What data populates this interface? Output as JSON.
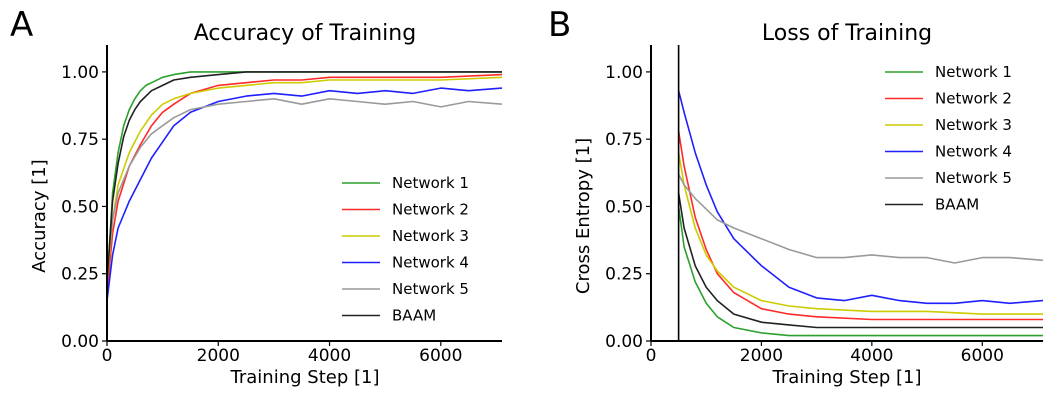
{
  "colors": {
    "network1": "#2ca02c",
    "network2": "#ff2a2a",
    "network3": "#cccc00",
    "network4": "#1f1fff",
    "network5": "#9a9a9a",
    "baam": "#222222"
  },
  "chart_data": [
    {
      "panel": "A",
      "type": "line",
      "title": "Accuracy of Training",
      "xlabel": "Training Step [1]",
      "ylabel": "Accuracy [1]",
      "xlim": [
        0,
        7100
      ],
      "ylim": [
        0,
        1.1
      ],
      "xticks": [
        0,
        2000,
        4000,
        6000
      ],
      "xtick_labels": [
        "0",
        "2000",
        "4000",
        "6000"
      ],
      "yticks": [
        0.0,
        0.25,
        0.5,
        0.75,
        1.0
      ],
      "ytick_labels": [
        "0.00",
        "0.25",
        "0.50",
        "0.75",
        "1.00"
      ],
      "grid": false,
      "legend_position": "lower-right",
      "series": [
        {
          "name": "Network 1",
          "color_key": "network1",
          "x": [
            0,
            100,
            200,
            300,
            400,
            500,
            600,
            700,
            800,
            1000,
            1200,
            1500,
            2000,
            2500,
            3000,
            4000,
            5000,
            6000,
            7100
          ],
          "y": [
            0.2,
            0.55,
            0.7,
            0.8,
            0.86,
            0.9,
            0.93,
            0.95,
            0.96,
            0.98,
            0.99,
            1.0,
            1.0,
            1.0,
            1.0,
            1.0,
            1.0,
            1.0,
            1.0
          ]
        },
        {
          "name": "Network 2",
          "color_key": "network2",
          "x": [
            0,
            100,
            200,
            400,
            600,
            800,
            1000,
            1200,
            1500,
            2000,
            2500,
            3000,
            3500,
            4000,
            5000,
            6000,
            7100
          ],
          "y": [
            0.18,
            0.4,
            0.52,
            0.65,
            0.73,
            0.8,
            0.85,
            0.88,
            0.92,
            0.95,
            0.96,
            0.97,
            0.97,
            0.98,
            0.98,
            0.98,
            0.99
          ]
        },
        {
          "name": "Network 3",
          "color_key": "network3",
          "x": [
            0,
            100,
            200,
            400,
            600,
            800,
            1000,
            1200,
            1500,
            2000,
            2500,
            3000,
            3500,
            4000,
            5000,
            6000,
            7100
          ],
          "y": [
            0.22,
            0.45,
            0.58,
            0.7,
            0.78,
            0.84,
            0.88,
            0.9,
            0.92,
            0.94,
            0.95,
            0.96,
            0.96,
            0.97,
            0.97,
            0.97,
            0.98
          ]
        },
        {
          "name": "Network 4",
          "color_key": "network4",
          "x": [
            0,
            100,
            200,
            400,
            600,
            800,
            1000,
            1200,
            1500,
            2000,
            2500,
            3000,
            3500,
            4000,
            4500,
            5000,
            5500,
            6000,
            6500,
            7100
          ],
          "y": [
            0.15,
            0.32,
            0.42,
            0.52,
            0.6,
            0.68,
            0.74,
            0.8,
            0.85,
            0.89,
            0.91,
            0.92,
            0.91,
            0.93,
            0.92,
            0.93,
            0.92,
            0.94,
            0.93,
            0.94
          ]
        },
        {
          "name": "Network 5",
          "color_key": "network5",
          "x": [
            0,
            100,
            200,
            400,
            600,
            800,
            1000,
            1200,
            1500,
            2000,
            2500,
            3000,
            3500,
            4000,
            4500,
            5000,
            5500,
            6000,
            6500,
            7100
          ],
          "y": [
            0.25,
            0.45,
            0.55,
            0.65,
            0.72,
            0.77,
            0.8,
            0.83,
            0.86,
            0.88,
            0.89,
            0.9,
            0.88,
            0.9,
            0.89,
            0.88,
            0.89,
            0.87,
            0.89,
            0.88
          ]
        },
        {
          "name": "BAAM",
          "color_key": "baam",
          "x": [
            0,
            100,
            200,
            300,
            400,
            500,
            600,
            800,
            1000,
            1200,
            1500,
            2000,
            2500,
            3000,
            4000,
            5000,
            6000,
            7100
          ],
          "y": [
            0.22,
            0.52,
            0.66,
            0.76,
            0.82,
            0.86,
            0.89,
            0.93,
            0.95,
            0.97,
            0.98,
            0.99,
            1.0,
            1.0,
            1.0,
            1.0,
            1.0,
            1.0
          ]
        }
      ]
    },
    {
      "panel": "B",
      "type": "line",
      "title": "Loss of Training",
      "xlabel": "Training Step [1]",
      "ylabel": "Cross Entropy [1]",
      "xlim": [
        0,
        7100
      ],
      "ylim": [
        0,
        1.1
      ],
      "xticks": [
        0,
        2000,
        4000,
        6000
      ],
      "xtick_labels": [
        "0",
        "2000",
        "4000",
        "6000"
      ],
      "yticks": [
        0.0,
        0.25,
        0.5,
        0.75,
        1.0
      ],
      "ytick_labels": [
        "0.00",
        "0.25",
        "0.50",
        "0.75",
        "1.00"
      ],
      "grid": false,
      "legend_position": "upper-right",
      "series": [
        {
          "name": "Network 1",
          "color_key": "network1",
          "x": [
            500,
            600,
            800,
            1000,
            1200,
            1500,
            2000,
            2500,
            3000,
            4000,
            5000,
            6000,
            7100
          ],
          "y": [
            0.5,
            0.35,
            0.22,
            0.14,
            0.09,
            0.05,
            0.03,
            0.02,
            0.02,
            0.02,
            0.02,
            0.02,
            0.02
          ]
        },
        {
          "name": "Network 2",
          "color_key": "network2",
          "x": [
            500,
            600,
            800,
            1000,
            1200,
            1500,
            2000,
            2500,
            3000,
            4000,
            5000,
            6000,
            7100
          ],
          "y": [
            0.78,
            0.65,
            0.46,
            0.34,
            0.25,
            0.18,
            0.12,
            0.1,
            0.09,
            0.08,
            0.08,
            0.08,
            0.08
          ]
        },
        {
          "name": "Network 3",
          "color_key": "network3",
          "x": [
            500,
            600,
            800,
            1000,
            1200,
            1500,
            2000,
            2500,
            3000,
            4000,
            5000,
            6000,
            7100
          ],
          "y": [
            0.7,
            0.58,
            0.42,
            0.32,
            0.26,
            0.2,
            0.15,
            0.13,
            0.12,
            0.11,
            0.11,
            0.1,
            0.1
          ]
        },
        {
          "name": "Network 4",
          "color_key": "network4",
          "x": [
            500,
            600,
            800,
            1000,
            1200,
            1500,
            2000,
            2500,
            3000,
            3500,
            4000,
            4500,
            5000,
            5500,
            6000,
            6500,
            7100
          ],
          "y": [
            0.93,
            0.85,
            0.7,
            0.58,
            0.48,
            0.38,
            0.28,
            0.2,
            0.16,
            0.15,
            0.17,
            0.15,
            0.14,
            0.14,
            0.15,
            0.14,
            0.15
          ]
        },
        {
          "name": "Network 5",
          "color_key": "network5",
          "x": [
            500,
            600,
            800,
            1000,
            1200,
            1500,
            2000,
            2500,
            3000,
            3500,
            4000,
            4500,
            5000,
            5500,
            6000,
            6500,
            7100
          ],
          "y": [
            0.62,
            0.58,
            0.53,
            0.49,
            0.45,
            0.42,
            0.38,
            0.34,
            0.31,
            0.31,
            0.32,
            0.31,
            0.31,
            0.29,
            0.31,
            0.31,
            0.3
          ]
        },
        {
          "name": "BAAM",
          "color_key": "baam",
          "x": [
            500,
            600,
            800,
            1000,
            1200,
            1500,
            2000,
            2500,
            3000,
            4000,
            5000,
            6000,
            7100
          ],
          "y": [
            0.55,
            0.42,
            0.28,
            0.2,
            0.15,
            0.1,
            0.07,
            0.06,
            0.05,
            0.05,
            0.05,
            0.05,
            0.05
          ]
        }
      ],
      "marks": [
        {
          "type": "vline",
          "x": 500,
          "y_range": [
            0,
            1.1
          ]
        }
      ]
    }
  ]
}
